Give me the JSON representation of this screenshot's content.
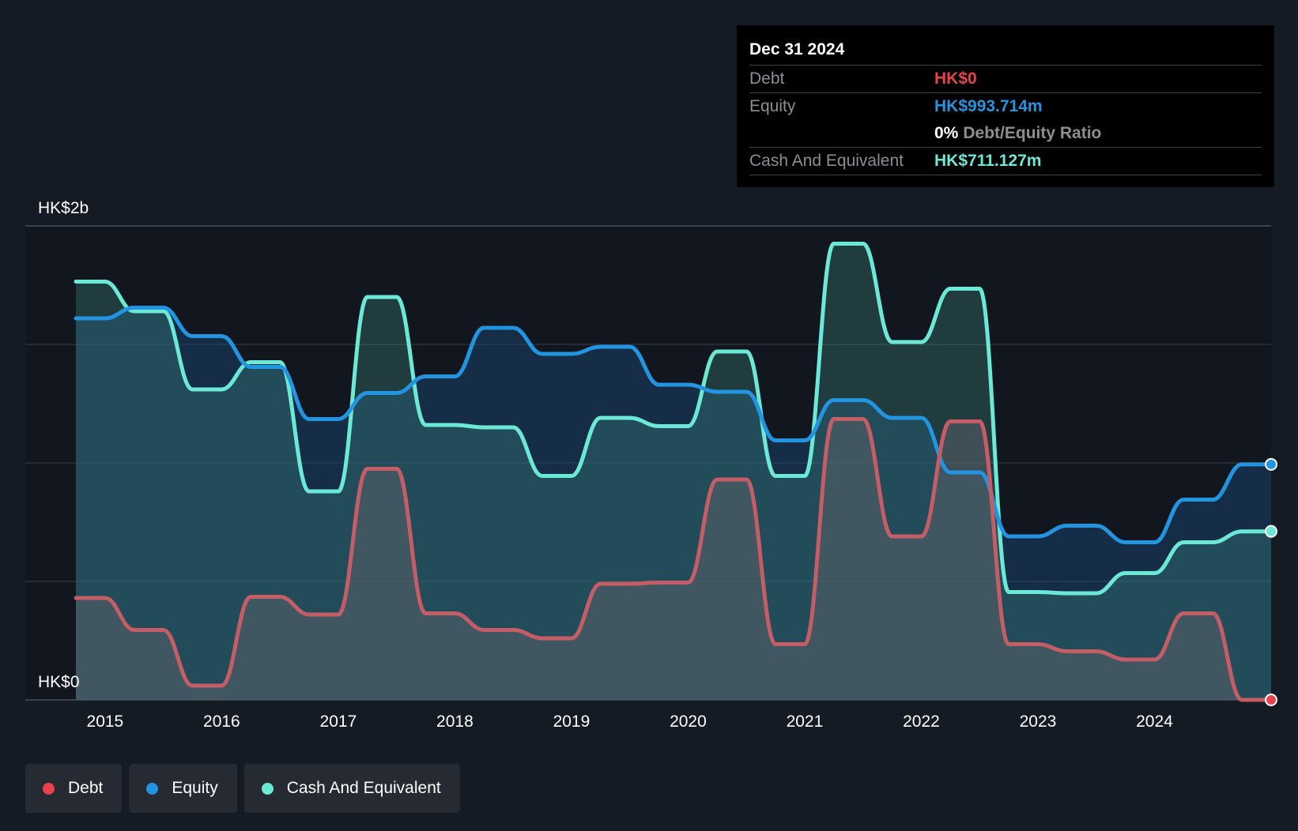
{
  "tooltip": {
    "date": "Dec 31 2024",
    "debt_label": "Debt",
    "debt_value": "HK$0",
    "equity_label": "Equity",
    "equity_value": "HK$993.714m",
    "ratio_pct": "0%",
    "ratio_label": "Debt/Equity Ratio",
    "cash_label": "Cash And Equivalent",
    "cash_value": "HK$711.127m"
  },
  "legend": [
    {
      "label": "Debt",
      "color": "#e8434d"
    },
    {
      "label": "Equity",
      "color": "#2394df"
    },
    {
      "label": "Cash And Equivalent",
      "color": "#6ce8d6"
    }
  ],
  "colors": {
    "debt": "#e8434d",
    "equity": "#2394df",
    "cash": "#6ce8d6",
    "debt_line": "#c45d66",
    "background": "#151b24"
  },
  "chart_data": {
    "type": "area",
    "y_labels": {
      "top": "HK$2b",
      "bottom": "HK$0"
    },
    "ylim": [
      0,
      2000
    ],
    "y_unit": "HK$m",
    "x_ticks": [
      "2015",
      "2016",
      "2017",
      "2018",
      "2019",
      "2020",
      "2021",
      "2022",
      "2023",
      "2024"
    ],
    "xlim": [
      2014.75,
      2025.0
    ],
    "grid": true,
    "legend_position": "bottom-left",
    "series": [
      {
        "name": "Debt",
        "points": [
          [
            2014.75,
            430
          ],
          [
            2015.0,
            430
          ],
          [
            2015.25,
            295
          ],
          [
            2015.5,
            295
          ],
          [
            2015.75,
            60
          ],
          [
            2016.0,
            60
          ],
          [
            2016.25,
            435
          ],
          [
            2016.5,
            435
          ],
          [
            2016.75,
            360
          ],
          [
            2017.0,
            360
          ],
          [
            2017.25,
            975
          ],
          [
            2017.5,
            975
          ],
          [
            2017.75,
            365
          ],
          [
            2018.0,
            365
          ],
          [
            2018.25,
            295
          ],
          [
            2018.5,
            295
          ],
          [
            2018.75,
            260
          ],
          [
            2019.0,
            260
          ],
          [
            2019.25,
            490
          ],
          [
            2019.5,
            490
          ],
          [
            2019.75,
            495
          ],
          [
            2020.0,
            495
          ],
          [
            2020.25,
            930
          ],
          [
            2020.5,
            930
          ],
          [
            2020.75,
            235
          ],
          [
            2021.0,
            235
          ],
          [
            2021.25,
            1185
          ],
          [
            2021.5,
            1185
          ],
          [
            2021.75,
            690
          ],
          [
            2022.0,
            690
          ],
          [
            2022.25,
            1175
          ],
          [
            2022.5,
            1175
          ],
          [
            2022.75,
            235
          ],
          [
            2023.0,
            235
          ],
          [
            2023.25,
            205
          ],
          [
            2023.5,
            205
          ],
          [
            2023.75,
            170
          ],
          [
            2024.0,
            170
          ],
          [
            2024.25,
            365
          ],
          [
            2024.5,
            365
          ],
          [
            2024.75,
            0
          ],
          [
            2025.0,
            0
          ]
        ]
      },
      {
        "name": "Equity",
        "points": [
          [
            2014.75,
            1610
          ],
          [
            2015.0,
            1610
          ],
          [
            2015.25,
            1655
          ],
          [
            2015.5,
            1655
          ],
          [
            2015.75,
            1535
          ],
          [
            2016.0,
            1535
          ],
          [
            2016.25,
            1405
          ],
          [
            2016.5,
            1405
          ],
          [
            2016.75,
            1185
          ],
          [
            2017.0,
            1185
          ],
          [
            2017.25,
            1295
          ],
          [
            2017.5,
            1295
          ],
          [
            2017.75,
            1365
          ],
          [
            2018.0,
            1365
          ],
          [
            2018.25,
            1570
          ],
          [
            2018.5,
            1570
          ],
          [
            2018.75,
            1460
          ],
          [
            2019.0,
            1460
          ],
          [
            2019.25,
            1490
          ],
          [
            2019.5,
            1490
          ],
          [
            2019.75,
            1330
          ],
          [
            2020.0,
            1330
          ],
          [
            2020.25,
            1300
          ],
          [
            2020.5,
            1300
          ],
          [
            2020.75,
            1095
          ],
          [
            2021.0,
            1095
          ],
          [
            2021.25,
            1265
          ],
          [
            2021.5,
            1265
          ],
          [
            2021.75,
            1190
          ],
          [
            2022.0,
            1190
          ],
          [
            2022.25,
            960
          ],
          [
            2022.5,
            960
          ],
          [
            2022.75,
            690
          ],
          [
            2023.0,
            690
          ],
          [
            2023.25,
            735
          ],
          [
            2023.5,
            735
          ],
          [
            2023.75,
            665
          ],
          [
            2024.0,
            665
          ],
          [
            2024.25,
            845
          ],
          [
            2024.5,
            845
          ],
          [
            2024.75,
            993.714
          ],
          [
            2025.0,
            993.714
          ]
        ]
      },
      {
        "name": "Cash And Equivalent",
        "points": [
          [
            2014.75,
            1765
          ],
          [
            2015.0,
            1765
          ],
          [
            2015.25,
            1640
          ],
          [
            2015.5,
            1640
          ],
          [
            2015.75,
            1310
          ],
          [
            2016.0,
            1310
          ],
          [
            2016.25,
            1425
          ],
          [
            2016.5,
            1425
          ],
          [
            2016.75,
            880
          ],
          [
            2017.0,
            880
          ],
          [
            2017.25,
            1700
          ],
          [
            2017.5,
            1700
          ],
          [
            2017.75,
            1160
          ],
          [
            2018.0,
            1160
          ],
          [
            2018.25,
            1150
          ],
          [
            2018.5,
            1150
          ],
          [
            2018.75,
            945
          ],
          [
            2019.0,
            945
          ],
          [
            2019.25,
            1190
          ],
          [
            2019.5,
            1190
          ],
          [
            2019.75,
            1155
          ],
          [
            2020.0,
            1155
          ],
          [
            2020.25,
            1470
          ],
          [
            2020.5,
            1470
          ],
          [
            2020.75,
            945
          ],
          [
            2021.0,
            945
          ],
          [
            2021.25,
            1925
          ],
          [
            2021.5,
            1925
          ],
          [
            2021.75,
            1510
          ],
          [
            2022.0,
            1510
          ],
          [
            2022.25,
            1735
          ],
          [
            2022.5,
            1735
          ],
          [
            2022.75,
            455
          ],
          [
            2023.0,
            455
          ],
          [
            2023.25,
            450
          ],
          [
            2023.5,
            450
          ],
          [
            2023.75,
            535
          ],
          [
            2024.0,
            535
          ],
          [
            2024.25,
            665
          ],
          [
            2024.5,
            665
          ],
          [
            2024.75,
            711.127
          ],
          [
            2025.0,
            711.127
          ]
        ]
      }
    ]
  }
}
